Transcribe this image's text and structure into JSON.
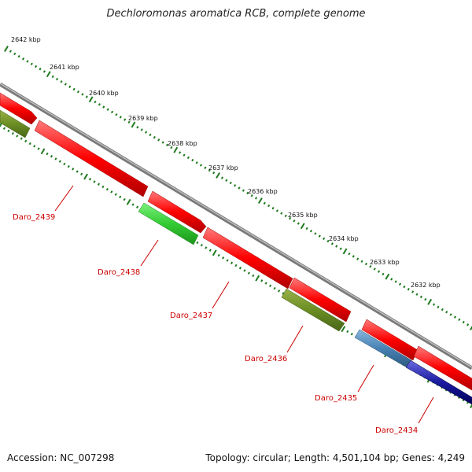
{
  "title": "Dechloromonas aromatica RCB, complete genome",
  "footer": {
    "accession": "Accession: NC_007298",
    "summary": "Topology: circular; Length: 4,501,104 bp; Genes: 4,249"
  },
  "scale_labels": [
    "2642 kbp",
    "2641 kbp",
    "2640 kbp",
    "2639 kbp",
    "2638 kbp",
    "2637 kbp",
    "2636 kbp",
    "2635 kbp",
    "2634 kbp",
    "2633 kbp",
    "2632 kbp"
  ],
  "gene_labels": [
    "Daro_2439",
    "Daro_2438",
    "Daro_2437",
    "Daro_2436",
    "Daro_2435",
    "Daro_2434"
  ],
  "colors": {
    "backbone": "#7a7a7a",
    "tick": "#1e7a1e",
    "forward_gene": "#ff0000",
    "olive_gene": "#6b8e23",
    "green_gene": "#33cc33",
    "steel_gene": "#4682b4",
    "navy_gene": "#000080",
    "label": "#cc0000"
  }
}
